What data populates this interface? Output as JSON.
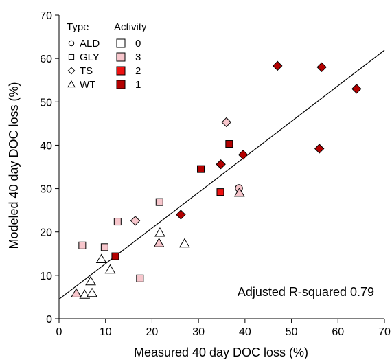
{
  "chart_data": {
    "type": "scatter",
    "title": "",
    "xlabel": "Measured 40 day DOC loss (%)",
    "ylabel": "Modeled 40 day DOC loss (%)",
    "xlim": [
      0,
      70
    ],
    "ylim": [
      0,
      70
    ],
    "x_ticks": [
      0,
      10,
      20,
      30,
      40,
      50,
      60,
      70
    ],
    "y_ticks": [
      0,
      10,
      20,
      30,
      40,
      50,
      60,
      70
    ],
    "grid": false,
    "legend_position": "top-left",
    "legend": {
      "type_title": "Type",
      "activity_title": "Activity",
      "types": [
        {
          "key": "ALD",
          "label": "ALD",
          "shape": "circle"
        },
        {
          "key": "GLY",
          "label": "GLY",
          "shape": "square"
        },
        {
          "key": "TS",
          "label": "TS",
          "shape": "diamond"
        },
        {
          "key": "WT",
          "label": "WT",
          "shape": "triangle"
        }
      ],
      "activities": [
        {
          "label": "0",
          "color": "#ffffff"
        },
        {
          "label": "3",
          "color": "#f7c6cc"
        },
        {
          "label": "2",
          "color": "#ee1111"
        },
        {
          "label": "1",
          "color": "#b30000"
        }
      ]
    },
    "fit_line": {
      "intercept": 4.5,
      "slope": 0.82
    },
    "annotation": "Adjusted R-squared 0.79",
    "points": [
      {
        "x": 47.0,
        "y": 58.3,
        "type": "TS",
        "activity": "1"
      },
      {
        "x": 56.5,
        "y": 58.0,
        "type": "TS",
        "activity": "1"
      },
      {
        "x": 64.0,
        "y": 53.0,
        "type": "TS",
        "activity": "1"
      },
      {
        "x": 56.0,
        "y": 39.2,
        "type": "TS",
        "activity": "1"
      },
      {
        "x": 36.0,
        "y": 45.3,
        "type": "TS",
        "activity": "3"
      },
      {
        "x": 36.6,
        "y": 40.3,
        "type": "GLY",
        "activity": "1"
      },
      {
        "x": 39.6,
        "y": 37.8,
        "type": "TS",
        "activity": "1"
      },
      {
        "x": 34.8,
        "y": 35.6,
        "type": "TS",
        "activity": "1"
      },
      {
        "x": 30.5,
        "y": 34.5,
        "type": "GLY",
        "activity": "1"
      },
      {
        "x": 38.7,
        "y": 30.1,
        "type": "ALD",
        "activity": "3"
      },
      {
        "x": 34.7,
        "y": 29.2,
        "type": "GLY",
        "activity": "2"
      },
      {
        "x": 38.8,
        "y": 29.0,
        "type": "WT",
        "activity": "3"
      },
      {
        "x": 26.2,
        "y": 24.0,
        "type": "TS",
        "activity": "1"
      },
      {
        "x": 21.6,
        "y": 26.9,
        "type": "GLY",
        "activity": "3"
      },
      {
        "x": 12.6,
        "y": 22.4,
        "type": "GLY",
        "activity": "3"
      },
      {
        "x": 16.4,
        "y": 22.6,
        "type": "TS",
        "activity": "3"
      },
      {
        "x": 21.7,
        "y": 19.8,
        "type": "WT",
        "activity": "0"
      },
      {
        "x": 21.5,
        "y": 17.4,
        "type": "WT",
        "activity": "3"
      },
      {
        "x": 27.0,
        "y": 17.3,
        "type": "WT",
        "activity": "0"
      },
      {
        "x": 5.0,
        "y": 16.9,
        "type": "GLY",
        "activity": "3"
      },
      {
        "x": 9.8,
        "y": 16.5,
        "type": "GLY",
        "activity": "3"
      },
      {
        "x": 12.1,
        "y": 14.4,
        "type": "GLY",
        "activity": "1"
      },
      {
        "x": 9.1,
        "y": 13.7,
        "type": "WT",
        "activity": "0"
      },
      {
        "x": 11.0,
        "y": 11.3,
        "type": "WT",
        "activity": "0"
      },
      {
        "x": 17.4,
        "y": 9.3,
        "type": "GLY",
        "activity": "3"
      },
      {
        "x": 6.8,
        "y": 8.6,
        "type": "WT",
        "activity": "0"
      },
      {
        "x": 3.7,
        "y": 5.8,
        "type": "WT",
        "activity": "3"
      },
      {
        "x": 5.5,
        "y": 5.5,
        "type": "WT",
        "activity": "0"
      },
      {
        "x": 7.1,
        "y": 5.9,
        "type": "WT",
        "activity": "0"
      }
    ]
  }
}
